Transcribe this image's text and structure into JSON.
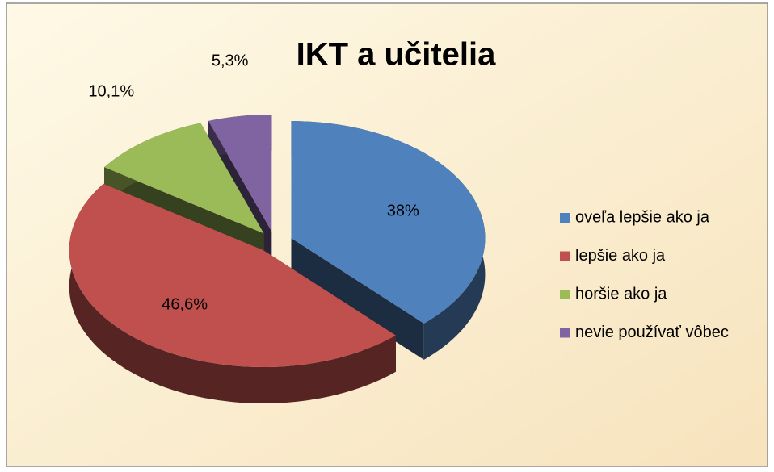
{
  "chart_data": {
    "type": "pie3d",
    "title": "IKT a učitelia",
    "categories": [
      "oveľa lepšie ako ja",
      "lepšie ako ja",
      "horšie ako ja",
      "nevie používať vôbec"
    ],
    "values": [
      38,
      46.6,
      10.1,
      5.3
    ],
    "value_labels": [
      "38%",
      "46,6%",
      "10,1%",
      "5,3%"
    ],
    "colors": [
      "#4f81bd",
      "#c0504d",
      "#9bbb59",
      "#8064a2"
    ],
    "legend": "right"
  }
}
